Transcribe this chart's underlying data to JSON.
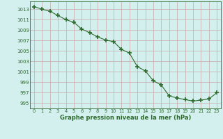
{
  "x": [
    0,
    1,
    2,
    3,
    4,
    5,
    6,
    7,
    8,
    9,
    10,
    11,
    12,
    13,
    14,
    15,
    16,
    17,
    18,
    19,
    20,
    21,
    22,
    23
  ],
  "y": [
    1013.5,
    1013.0,
    1012.6,
    1011.8,
    1011.0,
    1010.5,
    1009.2,
    1008.5,
    1007.7,
    1007.1,
    1006.8,
    1005.3,
    1004.6,
    1002.0,
    1001.2,
    999.3,
    998.5,
    996.4,
    996.0,
    995.7,
    995.4,
    995.6,
    995.8,
    997.0
  ],
  "line_color": "#2d6a2d",
  "marker": "+",
  "marker_size": 4,
  "marker_linewidth": 1.2,
  "bg_color": "#d4f0ee",
  "grid_color_h": "#c8a8a8",
  "grid_color_v": "#c8a8a8",
  "xlabel": "Graphe pression niveau de la mer (hPa)",
  "xlabel_color": "#2d6a2d",
  "tick_color": "#2d6a2d",
  "ylim": [
    994.0,
    1014.5
  ],
  "yticks": [
    995,
    997,
    999,
    1001,
    1003,
    1005,
    1007,
    1009,
    1011,
    1013
  ],
  "xlim": [
    -0.5,
    23.5
  ],
  "xticks": [
    0,
    1,
    2,
    3,
    4,
    5,
    6,
    7,
    8,
    9,
    10,
    11,
    12,
    13,
    14,
    15,
    16,
    17,
    18,
    19,
    20,
    21,
    22,
    23
  ]
}
